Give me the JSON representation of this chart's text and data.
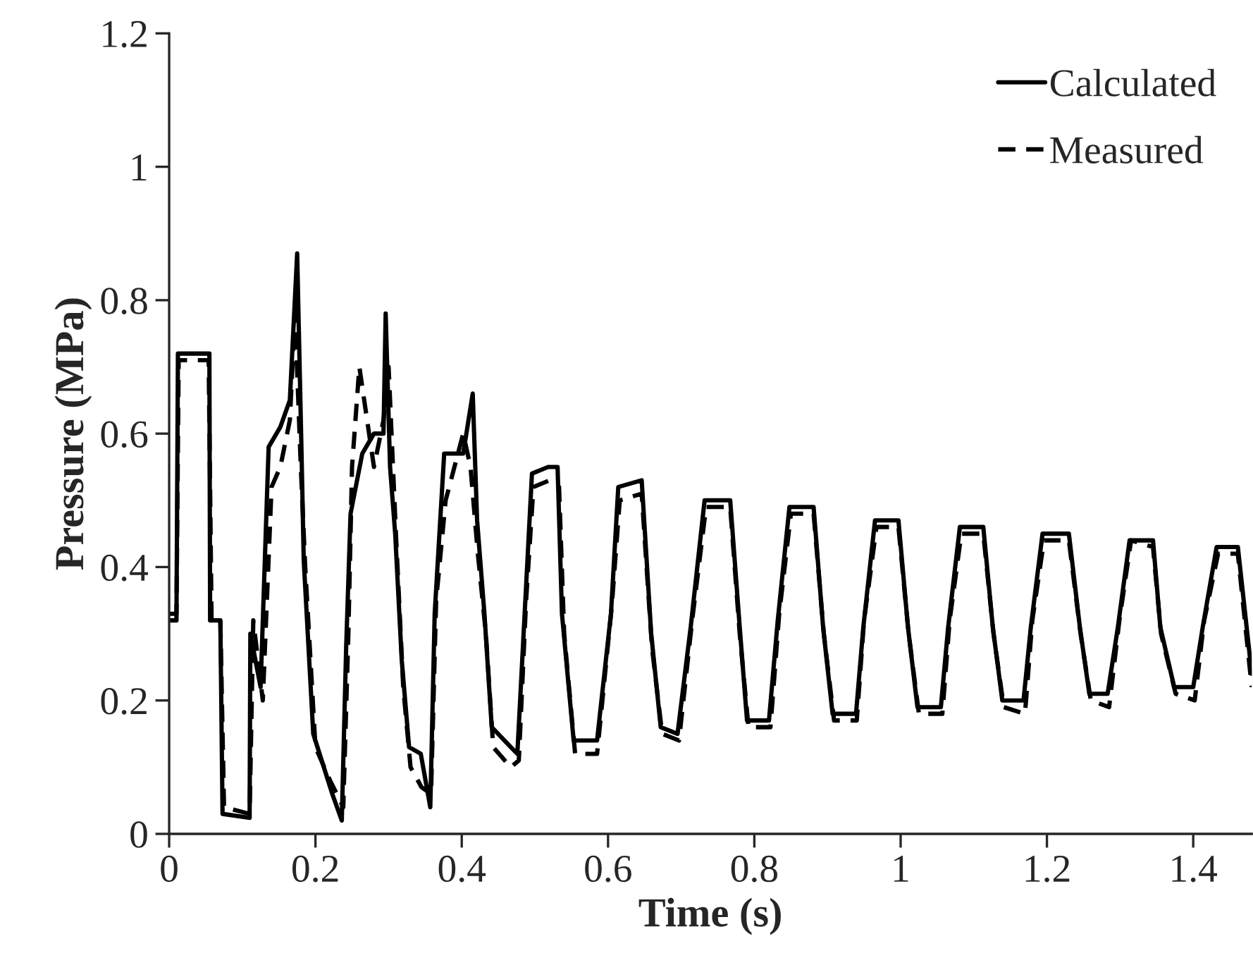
{
  "chart_data": {
    "type": "line",
    "xlabel": "Time (s)",
    "ylabel": "Pressure (MPa)",
    "xlim": [
      0,
      1.48
    ],
    "ylim": [
      0,
      1.2
    ],
    "xticks": [
      0,
      0.2,
      0.4,
      0.6,
      0.8,
      1,
      1.2,
      1.4
    ],
    "yticks": [
      0,
      0.2,
      0.4,
      0.6,
      0.8,
      1,
      1.2
    ],
    "grid": false,
    "legend": "top right",
    "marker": "none",
    "series": [
      {
        "name": "Calculated",
        "color": "#000000",
        "line_style": "solid",
        "x": [
          0,
          0.01,
          0.012,
          0.055,
          0.056,
          0.07,
          0.073,
          0.11,
          0.111,
          0.125,
          0.136,
          0.152,
          0.165,
          0.175,
          0.181,
          0.184,
          0.197,
          0.223,
          0.236,
          0.242,
          0.248,
          0.264,
          0.28,
          0.293,
          0.296,
          0.302,
          0.309,
          0.318,
          0.328,
          0.344,
          0.357,
          0.363,
          0.376,
          0.402,
          0.415,
          0.421,
          0.431,
          0.441,
          0.467,
          0.476,
          0.486,
          0.496,
          0.518,
          0.531,
          0.537,
          0.553,
          0.585,
          0.604,
          0.614,
          0.646,
          0.659,
          0.672,
          0.695,
          0.713,
          0.732,
          0.767,
          0.78,
          0.79,
          0.82,
          0.832,
          0.848,
          0.881,
          0.894,
          0.907,
          0.939,
          0.949,
          0.965,
          0.997,
          1.01,
          1.023,
          1.055,
          1.065,
          1.081,
          1.113,
          1.126,
          1.139,
          1.168,
          1.178,
          1.194,
          1.23,
          1.245,
          1.258,
          1.283,
          1.297,
          1.313,
          1.345,
          1.355,
          1.374,
          1.4,
          1.413,
          1.432,
          1.461,
          1.48
        ],
        "values": [
          0.32,
          0.32,
          0.72,
          0.72,
          0.32,
          0.32,
          0.03,
          0.024,
          0.3,
          0.22,
          0.58,
          0.61,
          0.65,
          0.87,
          0.57,
          0.41,
          0.15,
          0.06,
          0.02,
          0.28,
          0.48,
          0.57,
          0.6,
          0.6,
          0.78,
          0.55,
          0.45,
          0.26,
          0.13,
          0.12,
          0.04,
          0.33,
          0.57,
          0.57,
          0.66,
          0.47,
          0.33,
          0.16,
          0.13,
          0.12,
          0.33,
          0.54,
          0.55,
          0.55,
          0.33,
          0.14,
          0.14,
          0.33,
          0.52,
          0.53,
          0.3,
          0.16,
          0.15,
          0.31,
          0.5,
          0.5,
          0.31,
          0.17,
          0.17,
          0.32,
          0.49,
          0.49,
          0.31,
          0.18,
          0.18,
          0.31,
          0.47,
          0.47,
          0.31,
          0.19,
          0.19,
          0.31,
          0.46,
          0.46,
          0.31,
          0.2,
          0.2,
          0.31,
          0.45,
          0.45,
          0.31,
          0.21,
          0.21,
          0.31,
          0.44,
          0.44,
          0.31,
          0.22,
          0.22,
          0.31,
          0.43,
          0.43,
          0.24
        ]
      },
      {
        "name": "Measured",
        "color": "#000000",
        "line_style": "dashed",
        "x": [
          0,
          0.01,
          0.013,
          0.054,
          0.058,
          0.07,
          0.075,
          0.11,
          0.115,
          0.128,
          0.14,
          0.152,
          0.165,
          0.172,
          0.18,
          0.186,
          0.2,
          0.22,
          0.238,
          0.245,
          0.25,
          0.26,
          0.28,
          0.293,
          0.3,
          0.31,
          0.32,
          0.33,
          0.345,
          0.358,
          0.365,
          0.378,
          0.402,
          0.412,
          0.422,
          0.433,
          0.443,
          0.467,
          0.478,
          0.488,
          0.498,
          0.52,
          0.533,
          0.54,
          0.555,
          0.585,
          0.605,
          0.616,
          0.646,
          0.66,
          0.674,
          0.697,
          0.715,
          0.734,
          0.767,
          0.78,
          0.792,
          0.822,
          0.834,
          0.85,
          0.881,
          0.895,
          0.909,
          0.94,
          0.95,
          0.967,
          0.997,
          1.011,
          1.025,
          1.057,
          1.067,
          1.083,
          1.113,
          1.127,
          1.141,
          1.17,
          1.18,
          1.196,
          1.23,
          1.246,
          1.26,
          1.285,
          1.299,
          1.315,
          1.345,
          1.356,
          1.376,
          1.402,
          1.415,
          1.434,
          1.461,
          1.48
        ],
        "values": [
          0.33,
          0.33,
          0.71,
          0.71,
          0.32,
          0.32,
          0.04,
          0.03,
          0.32,
          0.2,
          0.52,
          0.55,
          0.62,
          0.78,
          0.55,
          0.4,
          0.13,
          0.08,
          0.04,
          0.3,
          0.55,
          0.7,
          0.55,
          0.62,
          0.7,
          0.45,
          0.22,
          0.1,
          0.07,
          0.06,
          0.35,
          0.5,
          0.6,
          0.55,
          0.42,
          0.3,
          0.13,
          0.1,
          0.11,
          0.35,
          0.52,
          0.53,
          0.52,
          0.3,
          0.12,
          0.12,
          0.34,
          0.5,
          0.51,
          0.28,
          0.15,
          0.14,
          0.32,
          0.49,
          0.49,
          0.3,
          0.16,
          0.16,
          0.33,
          0.48,
          0.48,
          0.3,
          0.17,
          0.17,
          0.32,
          0.46,
          0.46,
          0.3,
          0.18,
          0.18,
          0.32,
          0.45,
          0.45,
          0.3,
          0.19,
          0.18,
          0.32,
          0.44,
          0.44,
          0.3,
          0.2,
          0.19,
          0.32,
          0.44,
          0.43,
          0.3,
          0.21,
          0.2,
          0.32,
          0.42,
          0.42,
          0.22
        ]
      }
    ]
  }
}
